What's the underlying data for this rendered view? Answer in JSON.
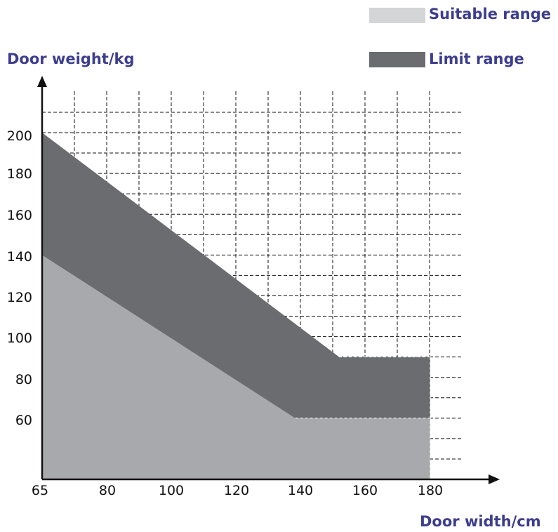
{
  "chart_data": {
    "type": "area",
    "xlabel": "Door width/cm",
    "ylabel": "Door weight/kg",
    "x_ticks": [
      65,
      80,
      100,
      120,
      140,
      160,
      180
    ],
    "y_ticks": [
      60,
      80,
      100,
      120,
      140,
      160,
      180,
      200
    ],
    "xlim": [
      65,
      180
    ],
    "ylim": [
      30,
      220
    ],
    "grid": true,
    "legend_position": "top-right",
    "series": [
      {
        "name": "Suitable range",
        "color": "#a8a9ad",
        "x": [
          65,
          140,
          180
        ],
        "y": [
          140,
          60,
          60
        ]
      },
      {
        "name": "Limit range",
        "color": "#6b6c70",
        "x": [
          65,
          153,
          180
        ],
        "y": [
          200,
          90,
          90
        ]
      }
    ]
  },
  "legend": {
    "suitable": {
      "label": "Suitable range",
      "color": "#d4d5d7"
    },
    "limit": {
      "label": "Limit range",
      "color": "#6b6c70"
    }
  },
  "axes": {
    "xlabel": "Door width/cm",
    "ylabel": "Door weight/kg"
  }
}
